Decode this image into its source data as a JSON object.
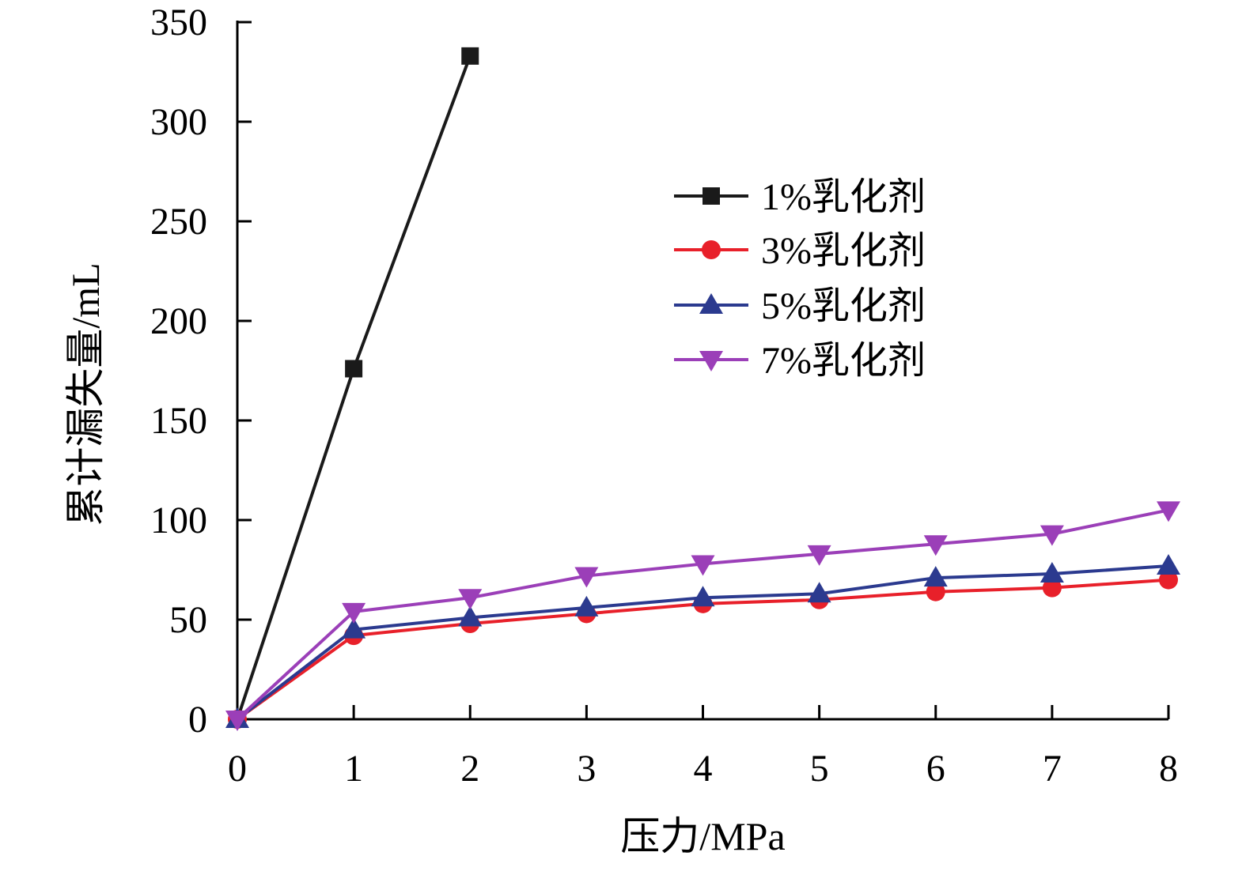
{
  "chart_data": {
    "type": "line",
    "title": "",
    "xlabel": "压力/MPa",
    "ylabel": "累计漏失量/mL",
    "xlim": [
      0,
      8
    ],
    "ylim": [
      0,
      350
    ],
    "x_ticks": [
      "0",
      "1",
      "2",
      "3",
      "4",
      "5",
      "6",
      "7",
      "8"
    ],
    "y_ticks": [
      "0",
      "50",
      "100",
      "150",
      "200",
      "250",
      "300",
      "350"
    ],
    "grid": false,
    "legend_position": "top-right",
    "series": [
      {
        "name": "1%乳化剂",
        "color": "#1a1a1a",
        "marker": "square",
        "x": [
          0,
          1,
          2
        ],
        "y": [
          0,
          176,
          333
        ]
      },
      {
        "name": "3%乳化剂",
        "color": "#e8202a",
        "marker": "circle",
        "x": [
          0,
          1,
          2,
          3,
          4,
          5,
          6,
          7,
          8
        ],
        "y": [
          0,
          42,
          48,
          53,
          58,
          60,
          64,
          66,
          70
        ]
      },
      {
        "name": "5%乳化剂",
        "color": "#2b3a8f",
        "marker": "triangle-up",
        "x": [
          0,
          1,
          2,
          3,
          4,
          5,
          6,
          7,
          8
        ],
        "y": [
          0,
          45,
          51,
          56,
          61,
          63,
          71,
          73,
          77
        ]
      },
      {
        "name": "7%乳化剂",
        "color": "#9b3fb8",
        "marker": "triangle-down",
        "x": [
          0,
          1,
          2,
          3,
          4,
          5,
          6,
          7,
          8
        ],
        "y": [
          0,
          54,
          61,
          72,
          78,
          83,
          88,
          93,
          105
        ]
      }
    ]
  }
}
